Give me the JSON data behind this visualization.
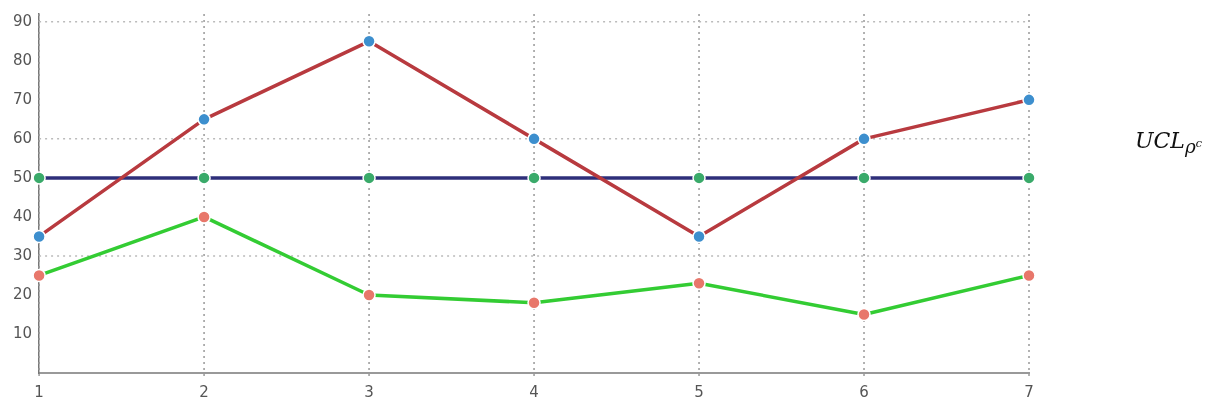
{
  "chart_data": {
    "type": "line",
    "categories": [
      "1",
      "2",
      "3",
      "4",
      "5",
      "6",
      "7"
    ],
    "series": [
      {
        "color": "#b83a3f",
        "colors": [
          "#3d8fce",
          "#3d8fce",
          "#3d8fce",
          "#3d8fce",
          "#3d8fce",
          "#3d8fce",
          "#3d8fce"
        ],
        "values": [
          35,
          65,
          85,
          60,
          35,
          60,
          70
        ]
      },
      {
        "color": "#2e2f7a",
        "colors": [
          "#3aaa6a",
          "#3aaa6a",
          "#3aaa6a",
          "#3aaa6a",
          "#3aaa6a",
          "#3aaa6a",
          "#3aaa6a"
        ],
        "values": [
          50,
          50,
          50,
          50,
          50,
          50,
          50
        ]
      },
      {
        "color": "#33cc33",
        "colors": [
          "#e8776b",
          "#e8776b",
          "#e8776b",
          "#e8776b",
          "#e8776b",
          "#e8776b",
          "#e8776b"
        ],
        "values": [
          25,
          40,
          20,
          18,
          23,
          15,
          25
        ]
      }
    ],
    "ylim": [
      0,
      92
    ],
    "yticks": [
      10,
      20,
      30,
      40,
      50,
      60,
      70,
      80,
      90
    ],
    "grid": "x",
    "legend": false,
    "marker": "circle",
    "line_style": "solid",
    "ref_lines": [
      {
        "axis": "y",
        "value": 30,
        "color": "#bbbbbb",
        "line_style": "dotted"
      },
      {
        "axis": "y",
        "value": 60,
        "color": "#bbbbbb",
        "line_style": "dotted"
      },
      {
        "axis": "y",
        "value": 90,
        "color": "#bbbbbb",
        "line_style": "dotted"
      }
    ],
    "annotations": [
      "UCL$_{ρᶜ}$"
    ]
  }
}
